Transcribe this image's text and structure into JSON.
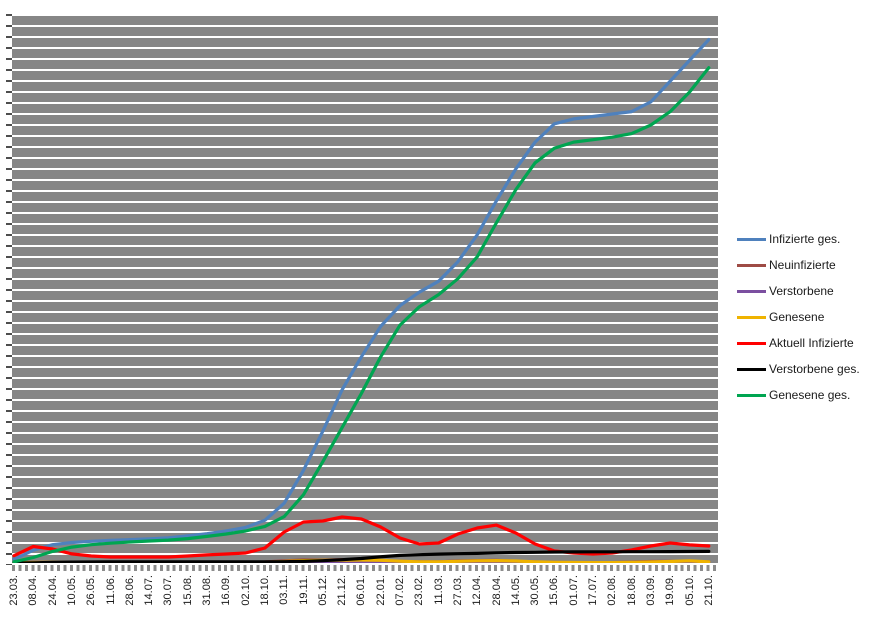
{
  "chart_data": {
    "type": "line",
    "title": "",
    "xlabel": "",
    "ylabel": "",
    "ylim": [
      0,
      4500000
    ],
    "y_axis_labels_visible": false,
    "x_label_rotation": 90,
    "grid": "horizontal white gridlines (50 divisions) on gray plot background",
    "plot_background_color": "#868686",
    "legend_position": "right",
    "categories": [
      "23.03.",
      "08.04.",
      "24.04.",
      "10.05.",
      "26.05.",
      "11.06.",
      "28.06.",
      "14.07.",
      "30.07.",
      "15.08.",
      "31.08.",
      "16.09.",
      "02.10.",
      "18.10.",
      "03.11.",
      "19.11.",
      "05.12.",
      "21.12.",
      "06.01.",
      "22.01.",
      "07.02.",
      "23.02.",
      "11.03.",
      "27.03.",
      "12.04.",
      "28.04.",
      "14.05.",
      "30.05.",
      "15.06.",
      "01.07.",
      "17.07.",
      "02.08.",
      "18.08.",
      "03.09.",
      "19.09.",
      "05.10.",
      "21.10."
    ],
    "series": [
      {
        "name": "Infizierte ges.",
        "color": "#4F81BD",
        "values": [
          30000,
          105000,
          150000,
          168000,
          178000,
          185000,
          192000,
          198000,
          206000,
          222000,
          240000,
          262000,
          292000,
          350000,
          490000,
          760000,
          1080000,
          1420000,
          1690000,
          1940000,
          2110000,
          2220000,
          2310000,
          2470000,
          2690000,
          2970000,
          3230000,
          3450000,
          3600000,
          3640000,
          3660000,
          3680000,
          3700000,
          3780000,
          3950000,
          4120000,
          4290000
        ]
      },
      {
        "name": "Neuinfizierte",
        "color": "#9E4B45",
        "values": [
          3000,
          6000,
          4000,
          2000,
          1000,
          1000,
          1000,
          1000,
          1000,
          2000,
          2000,
          3000,
          4000,
          8000,
          18000,
          25000,
          24000,
          28000,
          26000,
          20000,
          13000,
          9000,
          10000,
          16000,
          20000,
          22000,
          14000,
          8000,
          4000,
          3000,
          2000,
          3000,
          7000,
          12000,
          14000,
          11000,
          10000
        ]
      },
      {
        "name": "Verstorbene",
        "color": "#7B4FA0",
        "values": [
          20,
          150,
          200,
          120,
          60,
          30,
          20,
          10,
          10,
          10,
          10,
          20,
          20,
          30,
          80,
          200,
          400,
          700,
          900,
          850,
          600,
          400,
          250,
          200,
          200,
          250,
          200,
          150,
          80,
          50,
          30,
          20,
          30,
          60,
          80,
          80,
          80
        ]
      },
      {
        "name": "Genesene",
        "color": "#EFB300",
        "values": [
          1000,
          4000,
          5000,
          3000,
          2000,
          1000,
          1000,
          1000,
          1000,
          2000,
          2000,
          2000,
          3000,
          5000,
          12000,
          20000,
          22000,
          24000,
          25000,
          22000,
          15000,
          10000,
          10000,
          14000,
          18000,
          20000,
          16000,
          10000,
          6000,
          4000,
          3000,
          3000,
          5000,
          8000,
          12000,
          18000,
          9000
        ]
      },
      {
        "name": "Aktuell Infizierte",
        "color": "#FF0000",
        "values": [
          60000,
          135000,
          115000,
          75000,
          57000,
          49000,
          49000,
          49000,
          49000,
          57000,
          66000,
          74000,
          82000,
          123000,
          254000,
          336000,
          344000,
          377000,
          361000,
          295000,
          205000,
          156000,
          164000,
          238000,
          287000,
          311000,
          246000,
          156000,
          98000,
          82000,
          74000,
          82000,
          107000,
          139000,
          164000,
          148000,
          139000
        ]
      },
      {
        "name": "Verstorbene ges.",
        "color": "#000000",
        "values": [
          300,
          2000,
          5500,
          7500,
          8400,
          8800,
          9000,
          9100,
          9200,
          9300,
          9300,
          9400,
          9600,
          9900,
          10900,
          13500,
          18900,
          27000,
          37000,
          51000,
          62000,
          68000,
          73000,
          76000,
          79000,
          83000,
          86000,
          88000,
          90000,
          91000,
          91500,
          92000,
          92300,
          92800,
          93400,
          94200,
          95100
        ]
      },
      {
        "name": "Genesene ges.",
        "color": "#00A551",
        "values": [
          10000,
          45000,
          95000,
          130000,
          150000,
          162000,
          172000,
          180000,
          188000,
          200000,
          218000,
          238000,
          262000,
          300000,
          380000,
          560000,
          830000,
          1110000,
          1390000,
          1690000,
          1950000,
          2100000,
          2200000,
          2330000,
          2510000,
          2790000,
          3060000,
          3280000,
          3400000,
          3450000,
          3470000,
          3490000,
          3520000,
          3590000,
          3700000,
          3860000,
          4060000
        ]
      }
    ]
  },
  "axes": {
    "x_tick_color": "#8c8c8c",
    "y_tick_color": "#4d4d4d",
    "label_color": "#1a1a1a"
  }
}
